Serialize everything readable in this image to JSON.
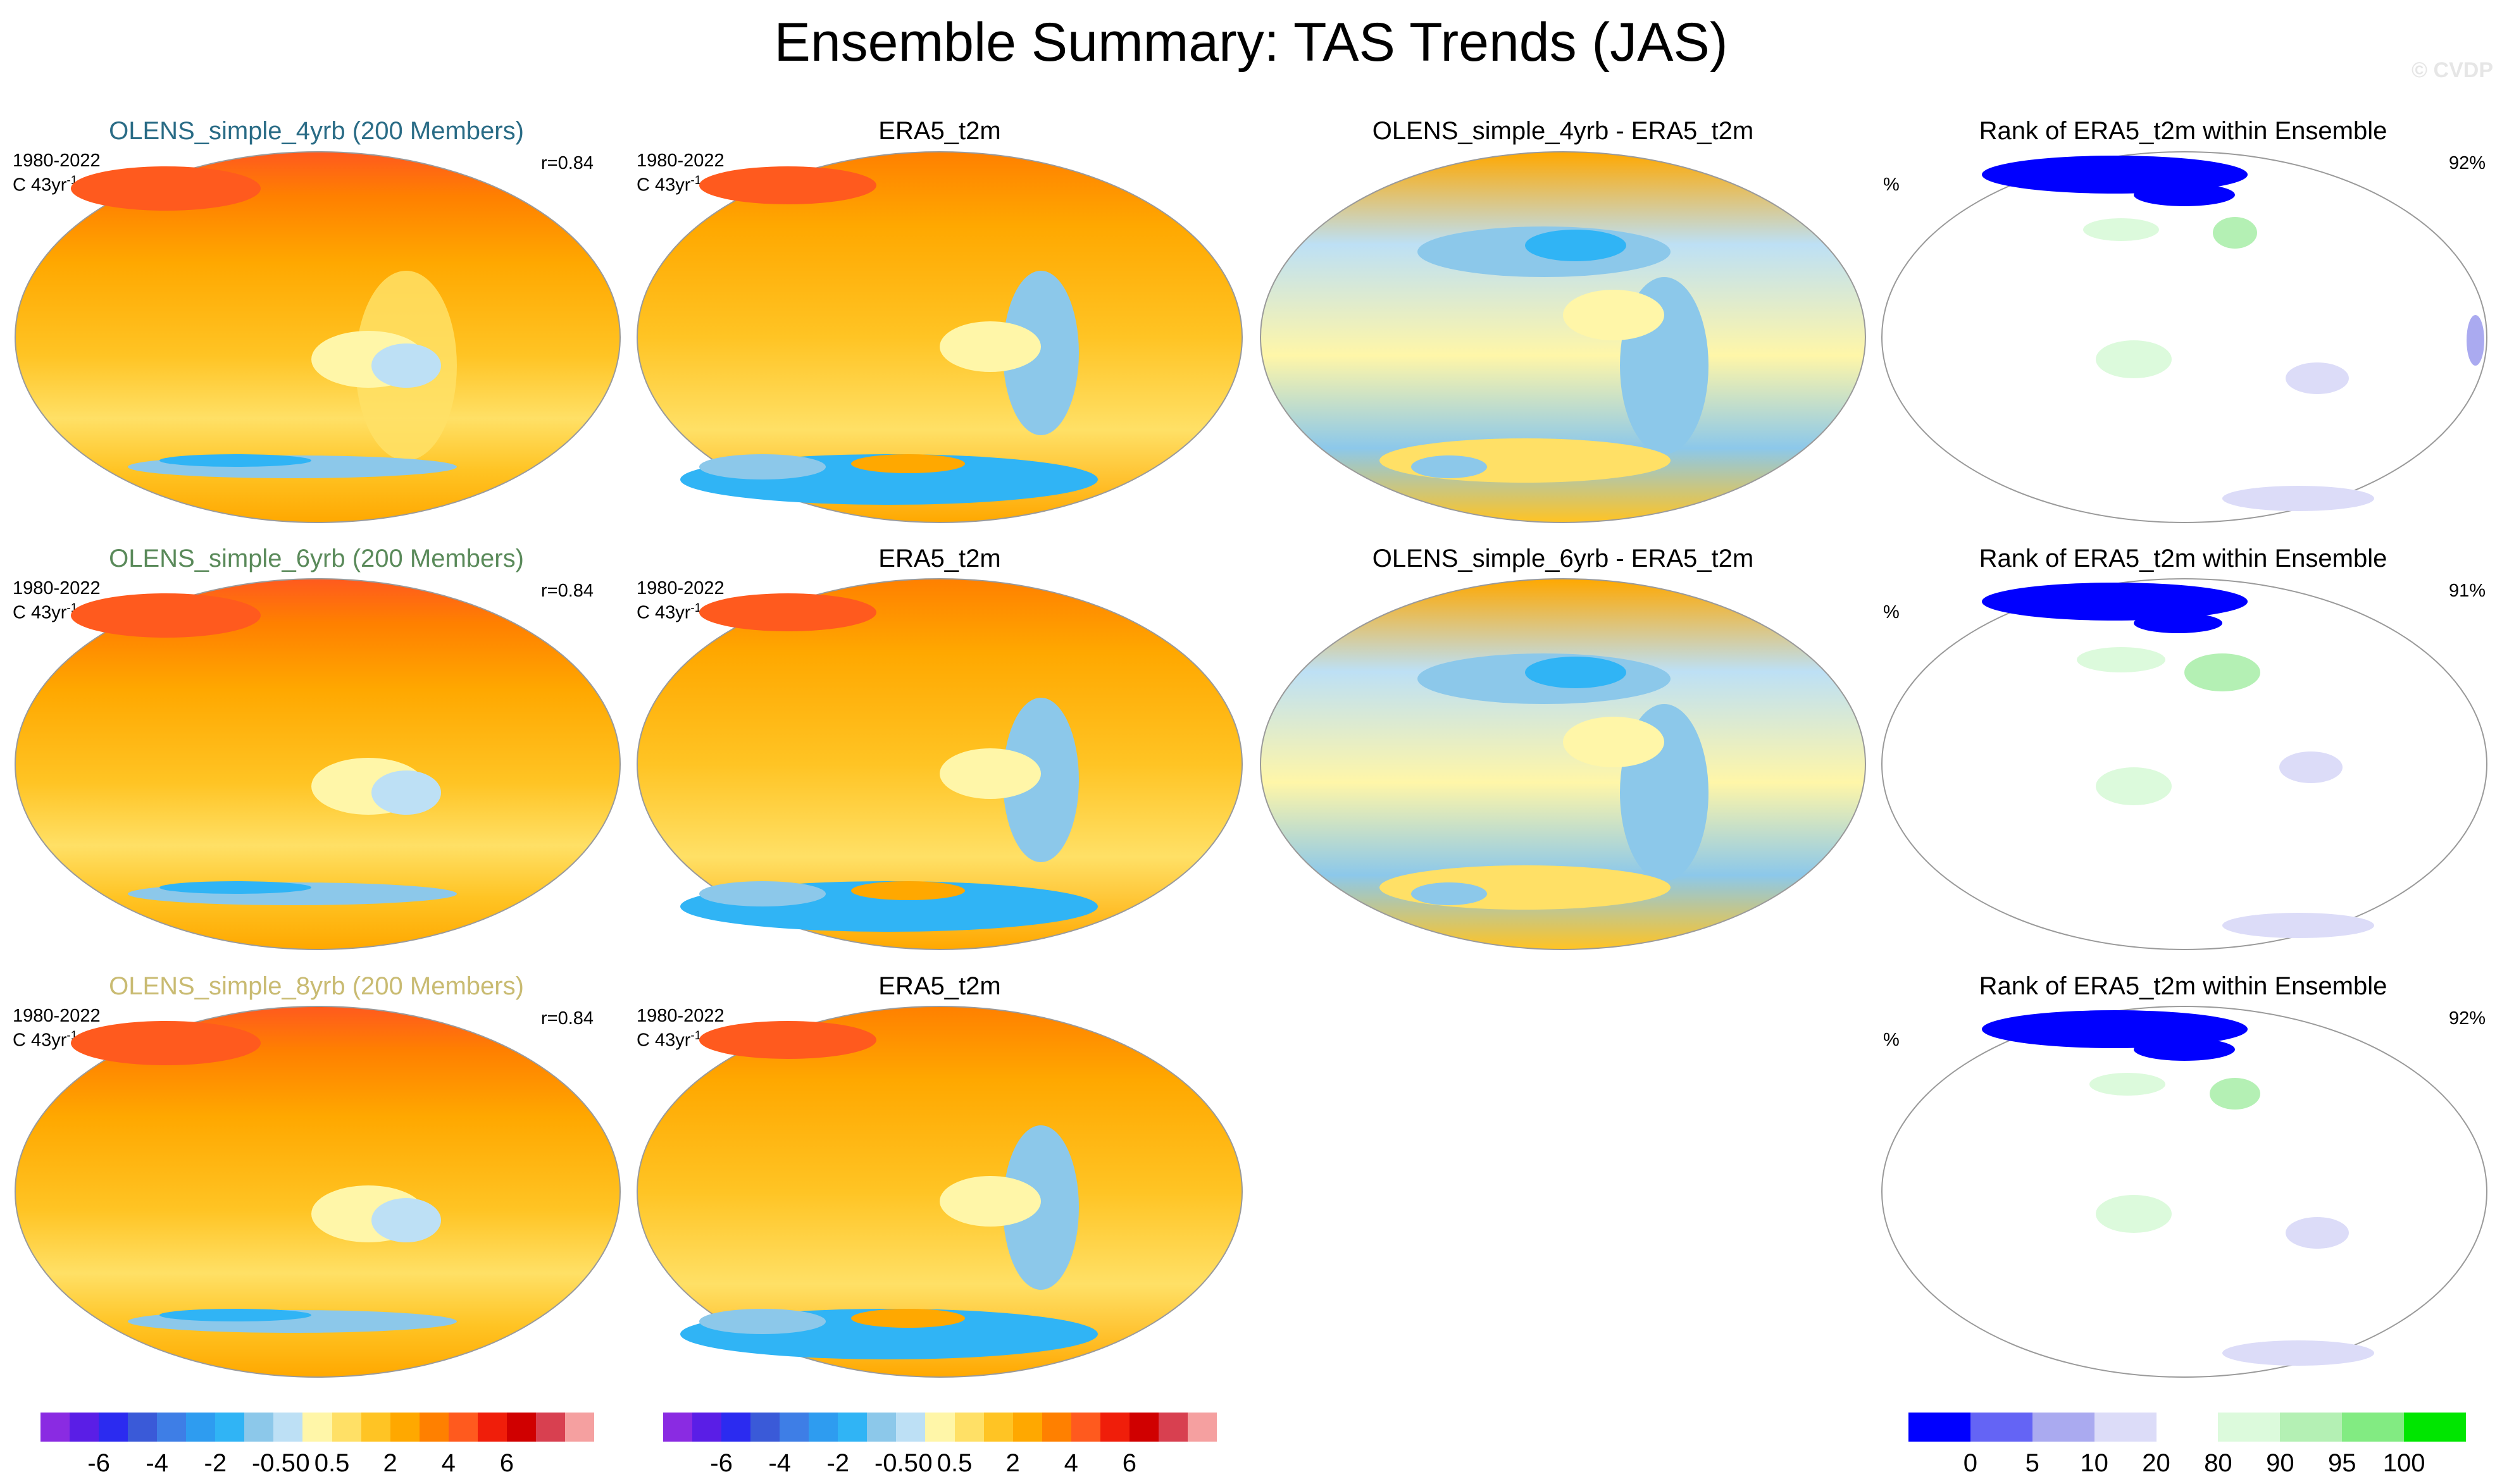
{
  "title": "Ensemble Summary: TAS Trends (JAS)",
  "watermark": "© CVDP",
  "rows": [
    {
      "ensemble_title": "OLENS_simple_4yrb (200 Members)",
      "ensemble_title_color": "#2a6c86",
      "period": "1980-2022",
      "units_prefix": "C 43yr",
      "units_exp": "-1",
      "pattern_corr": "r=0.84",
      "obs_title": "ERA5_t2m",
      "diff_title": "OLENS_simple_4yrb - ERA5_t2m",
      "rank_title": "Rank of ERA5_t2m within Ensemble",
      "rank_unit": "%",
      "rank_pct": "92%"
    },
    {
      "ensemble_title": "OLENS_simple_6yrb (200 Members)",
      "ensemble_title_color": "#5a8a5a",
      "period": "1980-2022",
      "units_prefix": "C 43yr",
      "units_exp": "-1",
      "pattern_corr": "r=0.84",
      "obs_title": "ERA5_t2m",
      "diff_title": "OLENS_simple_6yrb - ERA5_t2m",
      "rank_title": "Rank of ERA5_t2m within Ensemble",
      "rank_unit": "%",
      "rank_pct": "91%"
    },
    {
      "ensemble_title": "OLENS_simple_8yrb (200 Members)",
      "ensemble_title_color": "#c9bb72",
      "period": "1980-2022",
      "units_prefix": "C 43yr",
      "units_exp": "-1",
      "pattern_corr": "r=0.84",
      "obs_title": "ERA5_t2m",
      "rank_title": "Rank of ERA5_t2m within Ensemble",
      "rank_unit": "%",
      "rank_pct": "92%"
    }
  ],
  "trend_colorbar": {
    "colors": [
      "#8a2be2",
      "#5a1ee6",
      "#2b2bf0",
      "#3a5ad8",
      "#3e7ee6",
      "#2e9cf0",
      "#30b4f5",
      "#8cc8ea",
      "#bde0f5",
      "#fff6a8",
      "#ffe066",
      "#ffc424",
      "#ffa800",
      "#ff8000",
      "#ff5a1e",
      "#f01e0a",
      "#d00000",
      "#d84050",
      "#f5a0a0"
    ],
    "labels": [
      "-6",
      "-4",
      "-2",
      "-0.5",
      "0",
      "0.5",
      "2",
      "4",
      "6"
    ]
  },
  "rank_colorbar": {
    "colors": [
      "#0000ff",
      "#6464f5",
      "#aaaaf0",
      "#dcdcf8",
      "#ffffff",
      "#dcfadc",
      "#b4f0b4",
      "#82eb82",
      "#00e600"
    ],
    "labels": [
      "0",
      "5",
      "10",
      "20",
      "80",
      "90",
      "95",
      "100"
    ]
  }
}
